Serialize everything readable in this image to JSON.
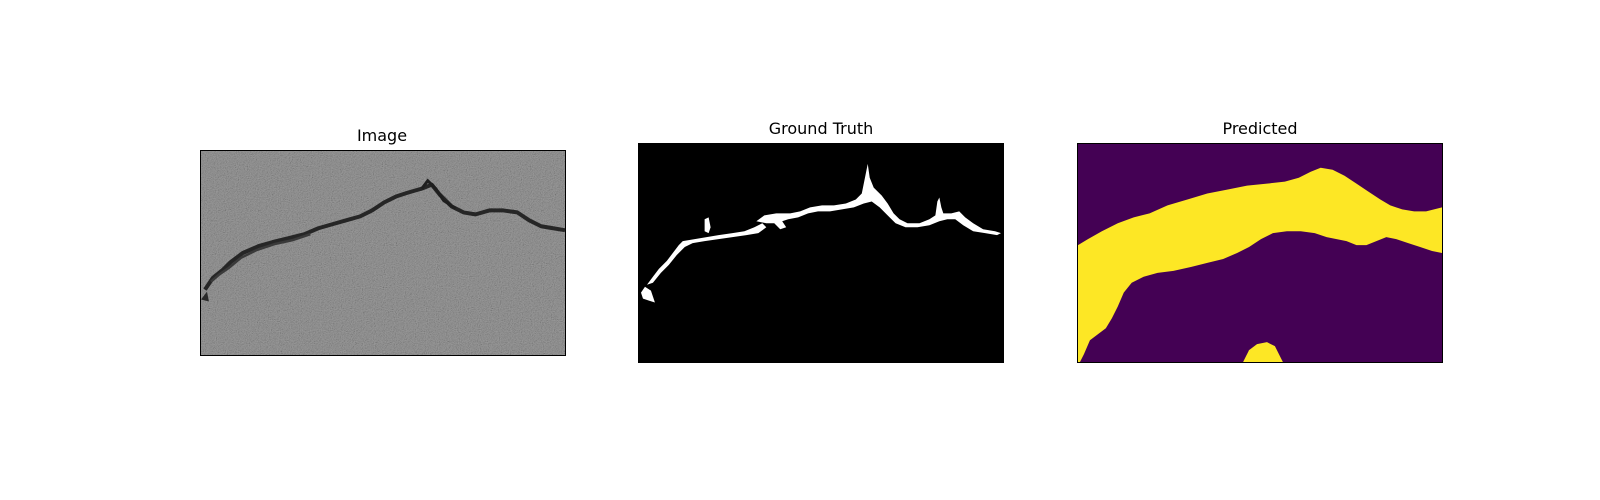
{
  "figure": {
    "panels": [
      {
        "title": "Image"
      },
      {
        "title": "Ground Truth"
      },
      {
        "title": "Predicted"
      }
    ]
  },
  "colors": {
    "asphalt": "#8d8d8d",
    "crack": "#2b2b2b",
    "mask_background": "#000000",
    "mask_foreground": "#ffffff",
    "pred_background": "#440154",
    "pred_foreground": "#fde725"
  }
}
